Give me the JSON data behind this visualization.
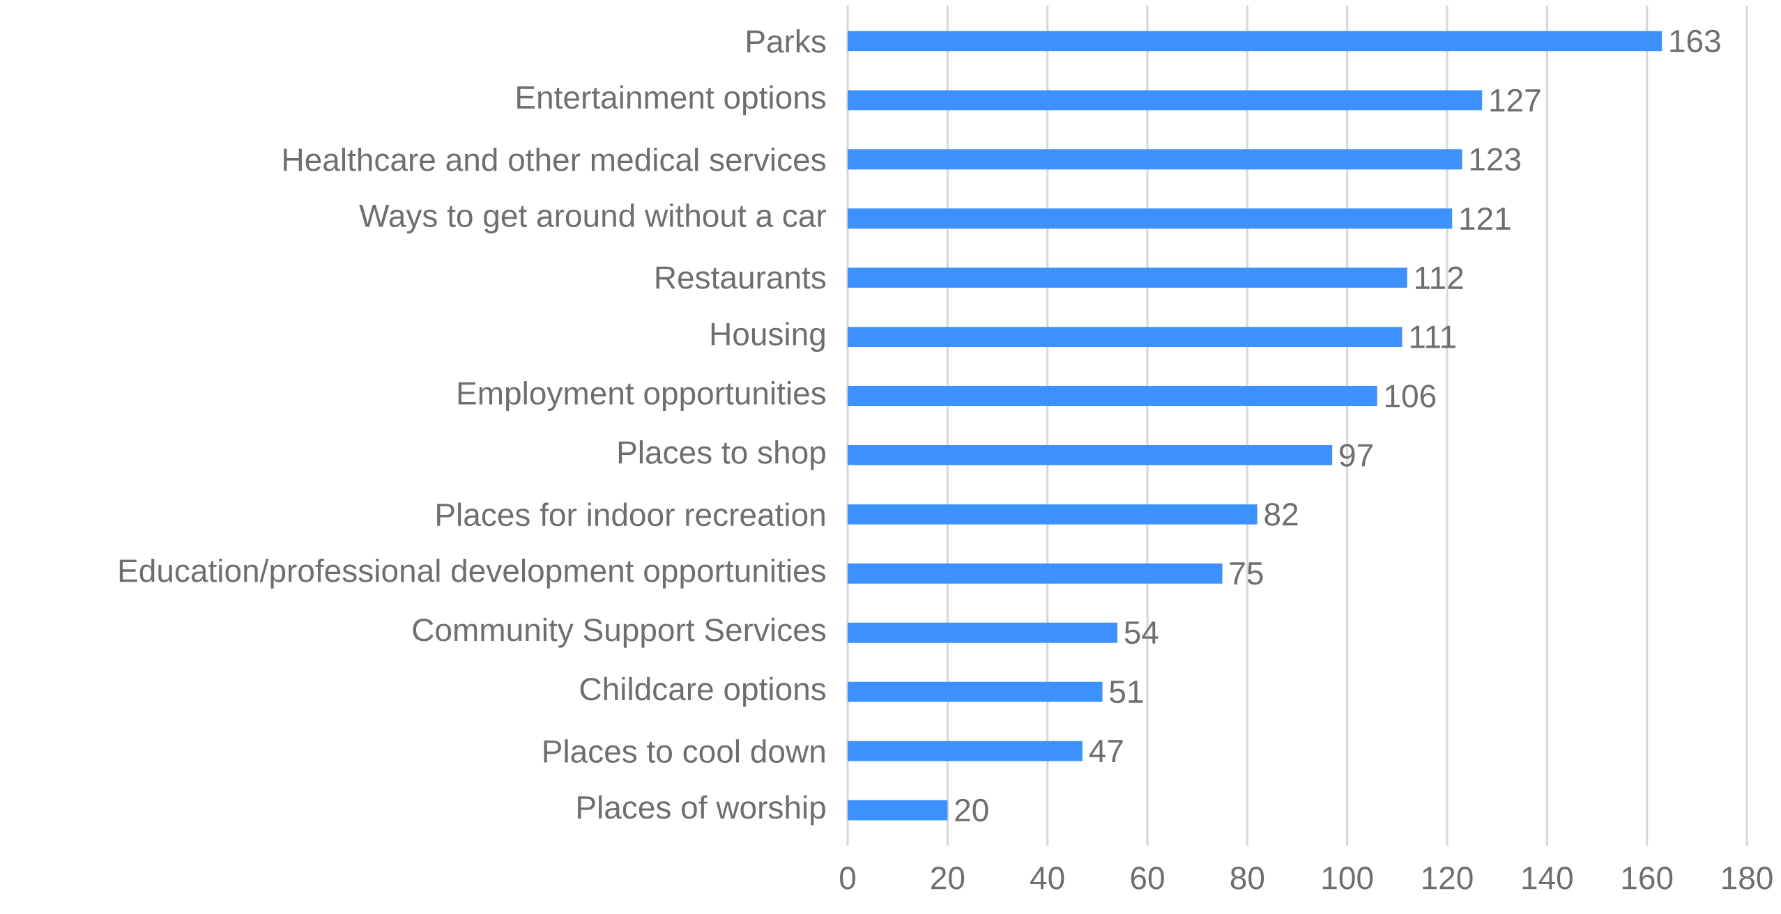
{
  "chart_data": {
    "type": "bar",
    "orientation": "horizontal",
    "categories": [
      "Parks",
      "Entertainment options",
      "Healthcare and other medical services",
      "Ways to get around without a car",
      "Restaurants",
      "Housing",
      "Employment opportunities",
      "Places to shop",
      "Places for indoor recreation",
      "Education/professional development opportunities",
      "Community Support Services",
      "Childcare options",
      "Places to cool down",
      "Places of worship"
    ],
    "values": [
      163,
      127,
      123,
      121,
      112,
      111,
      106,
      97,
      82,
      75,
      54,
      51,
      47,
      20
    ],
    "color": "#3d91ff",
    "xlim": [
      0,
      180
    ],
    "xticks": [
      0,
      20,
      40,
      60,
      80,
      100,
      120,
      140,
      160,
      180
    ],
    "grid": "x",
    "data_labels": true
  }
}
